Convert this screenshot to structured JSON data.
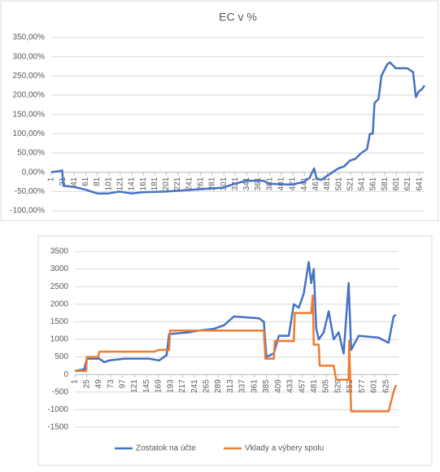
{
  "chart_data": [
    {
      "type": "line",
      "title": "EC v %",
      "color": "#4472c4",
      "grid": true,
      "x": [
        1,
        15,
        20,
        22,
        40,
        60,
        81,
        100,
        120,
        140,
        160,
        200,
        250,
        300,
        320,
        340,
        370,
        380,
        420,
        440,
        450,
        458,
        462,
        470,
        480,
        490,
        500,
        510,
        520,
        530,
        540,
        550,
        555,
        560,
        563,
        570,
        575,
        585,
        590,
        600,
        620,
        630,
        635,
        640,
        645,
        650
      ],
      "values": [
        0,
        3,
        5,
        -35,
        -38,
        -45,
        -55,
        -55,
        -50,
        -55,
        -52,
        -50,
        -45,
        -40,
        -30,
        -22,
        -22,
        -30,
        -32,
        -25,
        -15,
        10,
        -15,
        -20,
        -10,
        0,
        10,
        15,
        30,
        35,
        50,
        60,
        100,
        100,
        180,
        190,
        250,
        280,
        285,
        270,
        270,
        260,
        195,
        210,
        215,
        225
      ],
      "xlim": [
        1,
        650
      ],
      "xticks": [
        1,
        21,
        41,
        61,
        81,
        101,
        121,
        141,
        161,
        181,
        201,
        221,
        241,
        261,
        281,
        301,
        321,
        341,
        361,
        381,
        401,
        421,
        441,
        461,
        481,
        501,
        521,
        541,
        561,
        581,
        601,
        621,
        641
      ],
      "ylim": [
        -100,
        350
      ],
      "yticks": [
        {
          "value": -100,
          "label": "-100,00%"
        },
        {
          "value": -50,
          "label": "-50,00%"
        },
        {
          "value": 0,
          "label": "0,00%"
        },
        {
          "value": 50,
          "label": "50,00%"
        },
        {
          "value": 100,
          "label": "100,00%"
        },
        {
          "value": 150,
          "label": "150,00%"
        },
        {
          "value": 200,
          "label": "200,00%"
        },
        {
          "value": 250,
          "label": "250,00%"
        },
        {
          "value": 300,
          "label": "300,00%"
        },
        {
          "value": 350,
          "label": "350,00%"
        }
      ]
    },
    {
      "type": "line",
      "grid": true,
      "legend": "bottom",
      "series": [
        {
          "name": "Zostatok na účte",
          "color": "#4472c4",
          "x": [
            1,
            20,
            25,
            50,
            60,
            70,
            100,
            150,
            170,
            185,
            190,
            230,
            250,
            280,
            300,
            320,
            370,
            380,
            385,
            400,
            410,
            430,
            440,
            450,
            460,
            470,
            475,
            480,
            485,
            490,
            500,
            510,
            520,
            530,
            540,
            550,
            555,
            570,
            610,
            630,
            640,
            645
          ],
          "values": [
            100,
            150,
            450,
            450,
            350,
            400,
            450,
            450,
            400,
            550,
            1150,
            1200,
            1250,
            1300,
            1400,
            1650,
            1600,
            1500,
            500,
            600,
            1100,
            1100,
            2000,
            1900,
            2300,
            3200,
            2600,
            3000,
            1300,
            1000,
            1200,
            1800,
            1000,
            1200,
            600,
            2600,
            700,
            1100,
            1050,
            900,
            1650,
            1700
          ]
        },
        {
          "name": "Vklady a výbery spolu",
          "color": "#ed7d31",
          "x": [
            1,
            24,
            25,
            48,
            50,
            160,
            170,
            190,
            192,
            380,
            383,
            400,
            402,
            440,
            442,
            475,
            478,
            480,
            490,
            492,
            520,
            525,
            550,
            551,
            555,
            630,
            640,
            645
          ],
          "values": [
            100,
            100,
            500,
            500,
            650,
            650,
            700,
            700,
            1250,
            1250,
            450,
            450,
            950,
            950,
            1750,
            1750,
            2250,
            850,
            850,
            250,
            250,
            -150,
            -150,
            950,
            -1050,
            -1050,
            -500,
            -300
          ]
        }
      ],
      "xlim": [
        1,
        650
      ],
      "xticks": [
        1,
        25,
        49,
        73,
        97,
        121,
        145,
        169,
        193,
        217,
        241,
        265,
        289,
        313,
        337,
        361,
        385,
        409,
        433,
        457,
        481,
        505,
        529,
        553,
        577,
        601,
        625
      ],
      "ylim": [
        -1500,
        3500
      ],
      "yticks": [
        -1500,
        -1000,
        -500,
        0,
        500,
        1000,
        1500,
        2000,
        2500,
        3000,
        3500
      ]
    }
  ]
}
